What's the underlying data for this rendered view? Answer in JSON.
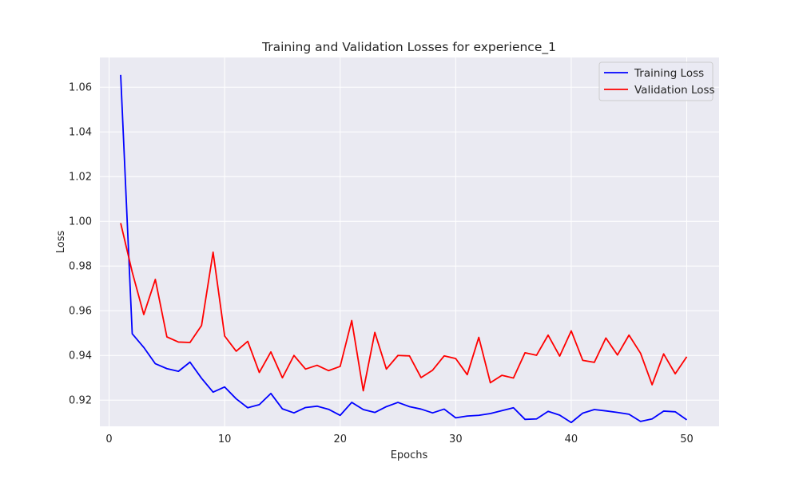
{
  "chart_data": {
    "type": "line",
    "title": "Training and Validation Losses for experience_1",
    "xlabel": "Epochs",
    "ylabel": "Loss",
    "xlim": [
      -0.8,
      52.8
    ],
    "ylim": [
      0.9083,
      1.0733
    ],
    "xticks": [
      0,
      10,
      20,
      30,
      40,
      50
    ],
    "yticks": [
      0.92,
      0.94,
      0.96,
      0.98,
      1.0,
      1.02,
      1.04,
      1.06
    ],
    "ytick_labels": [
      "0.92",
      "0.94",
      "0.96",
      "0.98",
      "1.00",
      "1.02",
      "1.04",
      "1.06"
    ],
    "grid": true,
    "background": "#eaeaf2",
    "legend_position": "top-right",
    "x": [
      1,
      2,
      3,
      4,
      5,
      6,
      7,
      8,
      9,
      10,
      11,
      12,
      13,
      14,
      15,
      16,
      17,
      18,
      19,
      20,
      21,
      22,
      23,
      24,
      25,
      26,
      27,
      28,
      29,
      30,
      31,
      32,
      33,
      34,
      35,
      36,
      37,
      38,
      39,
      40,
      41,
      42,
      43,
      44,
      45,
      46,
      47,
      48,
      49,
      50
    ],
    "series": [
      {
        "name": "Training Loss",
        "color": "#0000ff",
        "values": [
          1.0655,
          0.9497,
          0.9436,
          0.9363,
          0.9341,
          0.9329,
          0.937,
          0.9298,
          0.9236,
          0.9259,
          0.9206,
          0.9166,
          0.918,
          0.923,
          0.9161,
          0.9143,
          0.9167,
          0.9173,
          0.9159,
          0.9132,
          0.919,
          0.9158,
          0.9145,
          0.9171,
          0.919,
          0.9171,
          0.916,
          0.9143,
          0.916,
          0.9121,
          0.9129,
          0.9132,
          0.914,
          0.9153,
          0.9166,
          0.9114,
          0.9116,
          0.915,
          0.9133,
          0.91,
          0.9142,
          0.9158,
          0.9152,
          0.9145,
          0.9137,
          0.9105,
          0.9116,
          0.9151,
          0.9148,
          0.9112
        ]
      },
      {
        "name": "Validation Loss",
        "color": "#ff0000",
        "values": [
          0.9992,
          0.9773,
          0.9583,
          0.974,
          0.9483,
          0.946,
          0.9458,
          0.9534,
          0.9862,
          0.9487,
          0.9419,
          0.9463,
          0.9324,
          0.9416,
          0.93,
          0.94,
          0.9339,
          0.9356,
          0.9332,
          0.9351,
          0.9556,
          0.9242,
          0.9503,
          0.9339,
          0.94,
          0.9398,
          0.9301,
          0.9334,
          0.9398,
          0.9386,
          0.9314,
          0.9481,
          0.9278,
          0.9311,
          0.9299,
          0.9412,
          0.9401,
          0.9491,
          0.9397,
          0.951,
          0.9378,
          0.9369,
          0.9478,
          0.9402,
          0.9491,
          0.941,
          0.9269,
          0.9407,
          0.9318,
          0.9394
        ]
      }
    ]
  }
}
